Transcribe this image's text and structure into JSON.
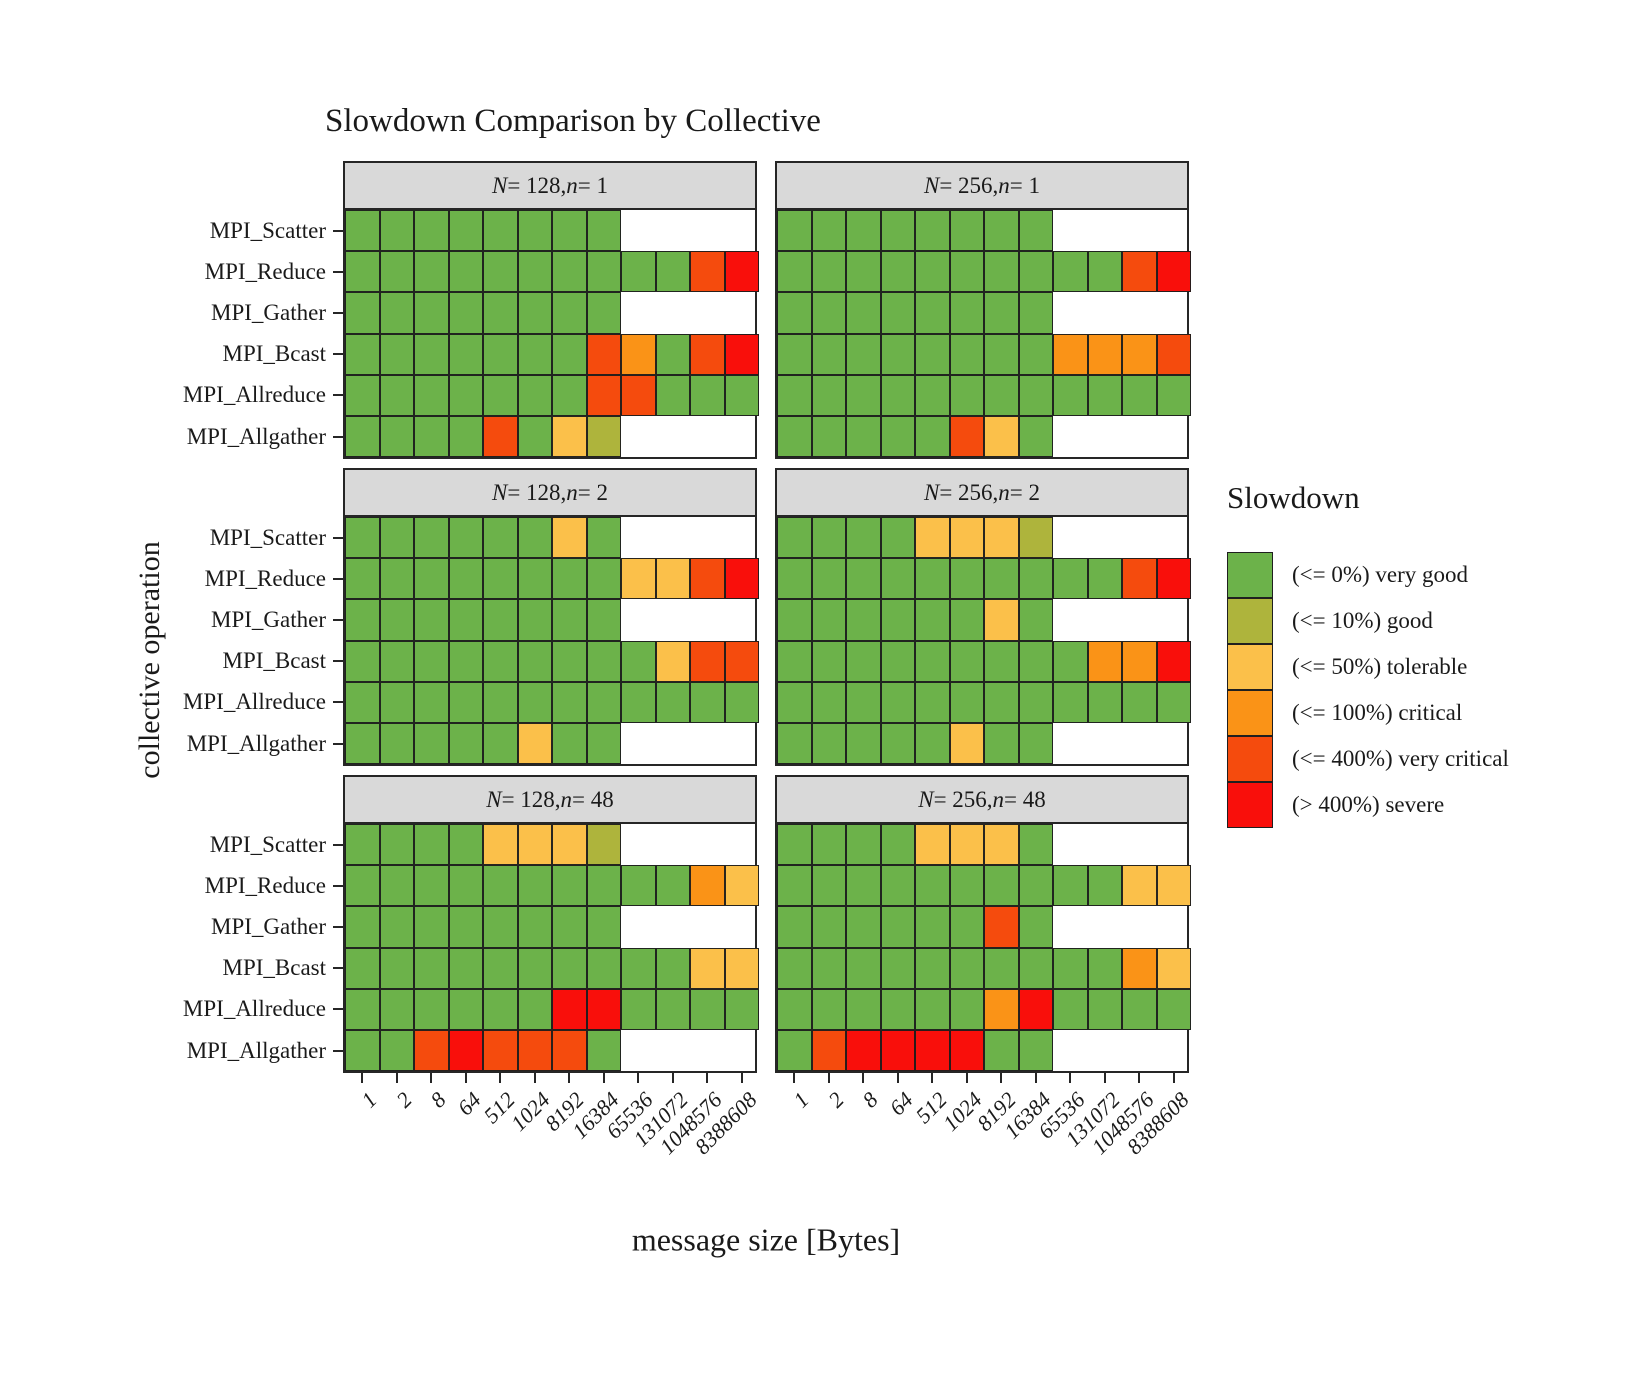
{
  "title": "Slowdown Comparison by Collective",
  "axes": {
    "x_title": "message size [Bytes]",
    "y_title": "collective operation"
  },
  "chart_data": {
    "type": "heatmap",
    "title": "Slowdown Comparison by Collective",
    "xlabel": "message size [Bytes]",
    "ylabel": "collective operation",
    "x_categories": [
      "1",
      "2",
      "8",
      "64",
      "512",
      "1024",
      "8192",
      "16384",
      "65536",
      "131072",
      "1048576",
      "8388608"
    ],
    "y_categories": [
      "MPI_Scatter",
      "MPI_Reduce",
      "MPI_Gather",
      "MPI_Bcast",
      "MPI_Allreduce",
      "MPI_Allgather"
    ],
    "legend": {
      "title": "Slowdown",
      "position": "right",
      "entries": [
        {
          "code": "vg",
          "label": "(<= 0%) very good",
          "color": "#6CB24A"
        },
        {
          "code": "g",
          "label": "(<= 10%) good",
          "color": "#AEB43C"
        },
        {
          "code": "t",
          "label": "(<= 50%) tolerable",
          "color": "#FBC04A"
        },
        {
          "code": "c",
          "label": "(<= 100%) critical",
          "color": "#FA9317"
        },
        {
          "code": "vc",
          "label": "(<= 400%) very critical",
          "color": "#F54B0D"
        },
        {
          "code": "s",
          "label": "(> 400%) severe",
          "color": "#F90F0B"
        }
      ]
    },
    "no_data_color": "#FFFFFF",
    "facet_header_color": "#D9D9D9",
    "panels": [
      {
        "label": "N = 128, n = 1",
        "rows": [
          [
            "vg",
            "vg",
            "vg",
            "vg",
            "vg",
            "vg",
            "vg",
            "vg",
            null,
            null,
            null,
            null
          ],
          [
            "vg",
            "vg",
            "vg",
            "vg",
            "vg",
            "vg",
            "vg",
            "vg",
            "vg",
            "vg",
            "vc",
            "s"
          ],
          [
            "vg",
            "vg",
            "vg",
            "vg",
            "vg",
            "vg",
            "vg",
            "vg",
            null,
            null,
            null,
            null
          ],
          [
            "vg",
            "vg",
            "vg",
            "vg",
            "vg",
            "vg",
            "vg",
            "vc",
            "c",
            "vg",
            "vc",
            "s"
          ],
          [
            "vg",
            "vg",
            "vg",
            "vg",
            "vg",
            "vg",
            "vg",
            "vc",
            "vc",
            "vg",
            "vg",
            "vg"
          ],
          [
            "vg",
            "vg",
            "vg",
            "vg",
            "vc",
            "vg",
            "t",
            "g",
            null,
            null,
            null,
            null
          ]
        ]
      },
      {
        "label": "N = 256, n = 1",
        "rows": [
          [
            "vg",
            "vg",
            "vg",
            "vg",
            "vg",
            "vg",
            "vg",
            "vg",
            null,
            null,
            null,
            null
          ],
          [
            "vg",
            "vg",
            "vg",
            "vg",
            "vg",
            "vg",
            "vg",
            "vg",
            "vg",
            "vg",
            "vc",
            "s"
          ],
          [
            "vg",
            "vg",
            "vg",
            "vg",
            "vg",
            "vg",
            "vg",
            "vg",
            null,
            null,
            null,
            null
          ],
          [
            "vg",
            "vg",
            "vg",
            "vg",
            "vg",
            "vg",
            "vg",
            "vg",
            "c",
            "c",
            "c",
            "vc"
          ],
          [
            "vg",
            "vg",
            "vg",
            "vg",
            "vg",
            "vg",
            "vg",
            "vg",
            "vg",
            "vg",
            "vg",
            "vg"
          ],
          [
            "vg",
            "vg",
            "vg",
            "vg",
            "vg",
            "vc",
            "t",
            "vg",
            null,
            null,
            null,
            null
          ]
        ]
      },
      {
        "label": "N = 128, n = 2",
        "rows": [
          [
            "vg",
            "vg",
            "vg",
            "vg",
            "vg",
            "vg",
            "t",
            "vg",
            null,
            null,
            null,
            null
          ],
          [
            "vg",
            "vg",
            "vg",
            "vg",
            "vg",
            "vg",
            "vg",
            "vg",
            "t",
            "t",
            "vc",
            "s"
          ],
          [
            "vg",
            "vg",
            "vg",
            "vg",
            "vg",
            "vg",
            "vg",
            "vg",
            null,
            null,
            null,
            null
          ],
          [
            "vg",
            "vg",
            "vg",
            "vg",
            "vg",
            "vg",
            "vg",
            "vg",
            "vg",
            "t",
            "vc",
            "vc"
          ],
          [
            "vg",
            "vg",
            "vg",
            "vg",
            "vg",
            "vg",
            "vg",
            "vg",
            "vg",
            "vg",
            "vg",
            "vg"
          ],
          [
            "vg",
            "vg",
            "vg",
            "vg",
            "vg",
            "t",
            "vg",
            "vg",
            null,
            null,
            null,
            null
          ]
        ]
      },
      {
        "label": "N = 256, n = 2",
        "rows": [
          [
            "vg",
            "vg",
            "vg",
            "vg",
            "t",
            "t",
            "t",
            "g",
            null,
            null,
            null,
            null
          ],
          [
            "vg",
            "vg",
            "vg",
            "vg",
            "vg",
            "vg",
            "vg",
            "vg",
            "vg",
            "vg",
            "vc",
            "s"
          ],
          [
            "vg",
            "vg",
            "vg",
            "vg",
            "vg",
            "vg",
            "t",
            "vg",
            null,
            null,
            null,
            null
          ],
          [
            "vg",
            "vg",
            "vg",
            "vg",
            "vg",
            "vg",
            "vg",
            "vg",
            "vg",
            "c",
            "c",
            "s"
          ],
          [
            "vg",
            "vg",
            "vg",
            "vg",
            "vg",
            "vg",
            "vg",
            "vg",
            "vg",
            "vg",
            "vg",
            "vg"
          ],
          [
            "vg",
            "vg",
            "vg",
            "vg",
            "vg",
            "t",
            "vg",
            "vg",
            null,
            null,
            null,
            null
          ]
        ]
      },
      {
        "label": "N = 128, n = 48",
        "rows": [
          [
            "vg",
            "vg",
            "vg",
            "vg",
            "t",
            "t",
            "t",
            "g",
            null,
            null,
            null,
            null
          ],
          [
            "vg",
            "vg",
            "vg",
            "vg",
            "vg",
            "vg",
            "vg",
            "vg",
            "vg",
            "vg",
            "c",
            "t"
          ],
          [
            "vg",
            "vg",
            "vg",
            "vg",
            "vg",
            "vg",
            "vg",
            "vg",
            null,
            null,
            null,
            null
          ],
          [
            "vg",
            "vg",
            "vg",
            "vg",
            "vg",
            "vg",
            "vg",
            "vg",
            "vg",
            "vg",
            "t",
            "t"
          ],
          [
            "vg",
            "vg",
            "vg",
            "vg",
            "vg",
            "vg",
            "s",
            "s",
            "vg",
            "vg",
            "vg",
            "vg"
          ],
          [
            "vg",
            "vg",
            "vc",
            "s",
            "vc",
            "vc",
            "vc",
            "vg",
            null,
            null,
            null,
            null
          ]
        ]
      },
      {
        "label": "N = 256, n = 48",
        "rows": [
          [
            "vg",
            "vg",
            "vg",
            "vg",
            "t",
            "t",
            "t",
            "vg",
            null,
            null,
            null,
            null
          ],
          [
            "vg",
            "vg",
            "vg",
            "vg",
            "vg",
            "vg",
            "vg",
            "vg",
            "vg",
            "vg",
            "t",
            "t"
          ],
          [
            "vg",
            "vg",
            "vg",
            "vg",
            "vg",
            "vg",
            "vc",
            "vg",
            null,
            null,
            null,
            null
          ],
          [
            "vg",
            "vg",
            "vg",
            "vg",
            "vg",
            "vg",
            "vg",
            "vg",
            "vg",
            "vg",
            "c",
            "t"
          ],
          [
            "vg",
            "vg",
            "vg",
            "vg",
            "vg",
            "vg",
            "c",
            "s",
            "vg",
            "vg",
            "vg",
            "vg"
          ],
          [
            "vg",
            "vc",
            "s",
            "s",
            "s",
            "s",
            "vg",
            "vg",
            null,
            null,
            null,
            null
          ]
        ]
      }
    ]
  }
}
